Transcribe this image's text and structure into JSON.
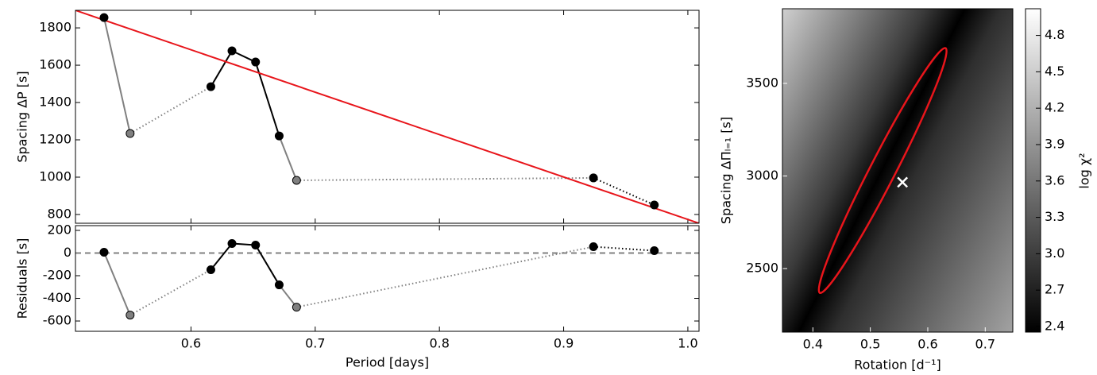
{
  "chart_data": [
    {
      "type": "line",
      "ylabel": "Spacing ΔP [s]",
      "x": [
        0.53,
        0.551,
        0.616,
        0.633,
        0.652,
        0.671,
        0.685,
        0.924,
        0.973
      ],
      "values": [
        1855,
        1234,
        1485,
        1677,
        1617,
        1221,
        983,
        996,
        851
      ],
      "marker_colors": [
        "#000000",
        "#808080",
        "#000000",
        "#000000",
        "#000000",
        "#000000",
        "#808080",
        "#000000",
        "#000000"
      ],
      "segment_styles": [
        {
          "color": "#808080",
          "dash": "solid"
        },
        {
          "color": "#808080",
          "dash": "dotted"
        },
        {
          "color": "#000000",
          "dash": "solid"
        },
        {
          "color": "#000000",
          "dash": "solid"
        },
        {
          "color": "#000000",
          "dash": "solid"
        },
        {
          "color": "#808080",
          "dash": "solid"
        },
        {
          "color": "#808080",
          "dash": "dotted"
        },
        {
          "color": "#000000",
          "dash": "dotted"
        }
      ],
      "fit_line": {
        "color": "#e8151b",
        "x": [
          0.507,
          1.009
        ],
        "values": [
          1894,
          753
        ]
      },
      "xlim": [
        0.507,
        1.009
      ],
      "ylim": [
        753,
        1894
      ],
      "xticks": [
        0.6,
        0.7,
        0.8,
        0.9,
        {
          "value": 1,
          "label": "1.0"
        }
      ],
      "yticks": [
        800,
        1000,
        1200,
        1400,
        1600,
        1800
      ]
    },
    {
      "type": "line",
      "xlabel": "Period [days]",
      "ylabel": "Residuals [s]",
      "x": [
        0.53,
        0.551,
        0.616,
        0.633,
        0.652,
        0.671,
        0.685,
        0.924,
        0.973
      ],
      "values": [
        7,
        -548,
        -147,
        84,
        70,
        -281,
        -478,
        56,
        21
      ],
      "marker_colors": [
        "#000000",
        "#808080",
        "#000000",
        "#000000",
        "#000000",
        "#000000",
        "#808080",
        "#000000",
        "#000000"
      ],
      "segment_styles": [
        {
          "color": "#808080",
          "dash": "solid"
        },
        {
          "color": "#808080",
          "dash": "dotted"
        },
        {
          "color": "#000000",
          "dash": "solid"
        },
        {
          "color": "#000000",
          "dash": "solid"
        },
        {
          "color": "#000000",
          "dash": "solid"
        },
        {
          "color": "#808080",
          "dash": "solid"
        },
        {
          "color": "#808080",
          "dash": "dotted"
        },
        {
          "color": "#000000",
          "dash": "dotted"
        }
      ],
      "reference_line": {
        "value": 0,
        "color": "#808080",
        "dash": "dashed"
      },
      "xlim": [
        0.507,
        1.009
      ],
      "ylim": [
        -691,
        242
      ],
      "xticks": [
        0.6,
        0.7,
        0.8,
        0.9,
        {
          "value": 1,
          "label": "1.0"
        }
      ],
      "yticks": [
        -600,
        -400,
        -200,
        0,
        200
      ]
    },
    {
      "type": "heatmap",
      "xlabel": "Rotation [d⁻¹]",
      "ylabel": "Spacing ΔΠₗ₌₁ [s]",
      "xlim": [
        0.347,
        0.748
      ],
      "ylim": [
        2157,
        3903
      ],
      "xticks": [
        0.4,
        0.5,
        0.6,
        0.7
      ],
      "yticks": [
        2500,
        3000,
        3500
      ],
      "contour": {
        "color": "#e8151b",
        "x": [
          0.412,
          0.631
        ],
        "y": [
          2369,
          3690
        ]
      },
      "best_fit": {
        "x": 0.556,
        "y": 2966,
        "color": "#ffffff"
      },
      "colorbar": {
        "label": "log χ²",
        "lim": [
          2.354,
          5.02
        ],
        "ticks": [
          2.4,
          2.7,
          {
            "value": 3,
            "label": "3.0"
          },
          3.3,
          3.6,
          3.9,
          4.2,
          4.5,
          4.8
        ]
      }
    }
  ]
}
